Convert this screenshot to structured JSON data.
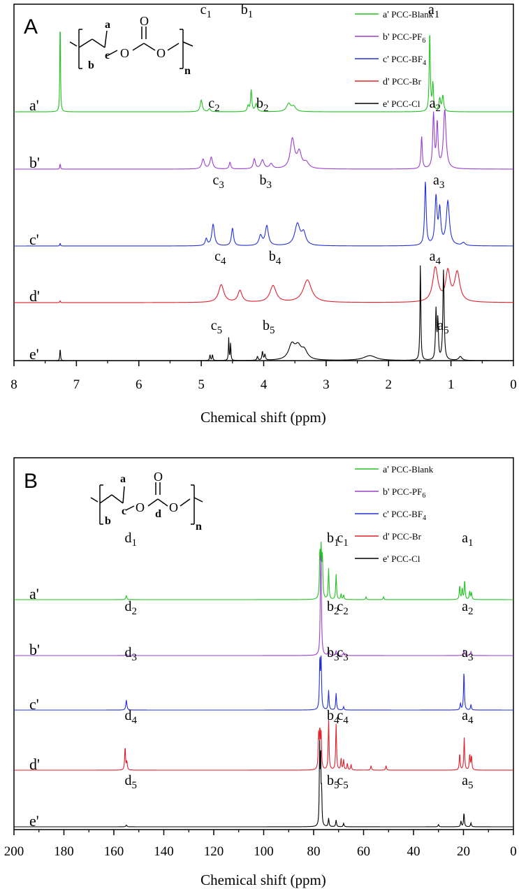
{
  "chart_data": [
    {
      "type": "line",
      "panel": "A",
      "xlabel": "Chemical shift (ppm)",
      "xlim": [
        8,
        0
      ],
      "x_reversed": true,
      "xticks": [
        8,
        7,
        6,
        5,
        4,
        3,
        2,
        1,
        0
      ],
      "grid": false,
      "legend_position": "top-right",
      "structure_labels": [
        "a",
        "c",
        "b",
        "O",
        "O",
        "O",
        "n"
      ],
      "series": [
        {
          "name": "PCC-Blank",
          "row_label": "a'",
          "legend_label": "a'",
          "color": "#22c322",
          "baseline": 0,
          "peak_height_scale": 140,
          "peaks": [
            [
              7.26,
              1.0,
              0.006
            ],
            [
              5.0,
              0.12,
              0.02
            ],
            [
              4.87,
              0.03,
              0.02
            ],
            [
              4.2,
              0.22,
              0.012
            ],
            [
              4.12,
              0.08,
              0.02
            ],
            [
              4.25,
              0.06,
              0.015
            ],
            [
              3.6,
              0.08,
              0.04
            ],
            [
              3.52,
              0.05,
              0.04
            ],
            [
              1.34,
              0.82,
              0.01
            ],
            [
              1.29,
              0.28,
              0.012
            ],
            [
              1.18,
              0.13,
              0.015
            ],
            [
              1.13,
              0.16,
              0.015
            ]
          ],
          "peak_labels": [
            {
              "letter": "c",
              "sub": "1",
              "x": 4.95
            },
            {
              "letter": "b",
              "sub": "1",
              "x": 4.3
            },
            {
              "letter": "a",
              "sub": "1",
              "x": 1.3
            }
          ]
        },
        {
          "name": "PCC-PF",
          "name_sub": "6",
          "row_label": "b'",
          "legend_label": "b'",
          "color": "#9a3fd0",
          "baseline": 0,
          "peak_height_scale": 140,
          "peaks": [
            [
              7.26,
              0.06,
              0.006
            ],
            [
              4.97,
              0.1,
              0.025
            ],
            [
              4.84,
              0.12,
              0.025
            ],
            [
              4.54,
              0.07,
              0.015
            ],
            [
              4.15,
              0.1,
              0.02
            ],
            [
              4.02,
              0.09,
              0.03
            ],
            [
              3.88,
              0.05,
              0.03
            ],
            [
              3.54,
              0.3,
              0.04
            ],
            [
              3.43,
              0.16,
              0.04
            ],
            [
              3.32,
              0.06,
              0.05
            ],
            [
              1.47,
              0.33,
              0.012
            ],
            [
              1.28,
              0.55,
              0.015
            ],
            [
              1.22,
              0.45,
              0.015
            ],
            [
              1.1,
              0.6,
              0.025
            ]
          ],
          "peak_labels": [
            {
              "letter": "c",
              "sub": "2",
              "x": 4.82
            },
            {
              "letter": "b",
              "sub": "2",
              "x": 4.05
            },
            {
              "letter": "a",
              "sub": "2",
              "x": 1.28
            }
          ]
        },
        {
          "name": "PCC-BF",
          "name_sub": "4",
          "row_label": "c'",
          "legend_label": "c'",
          "color": "#2430d6",
          "baseline": 0,
          "peak_height_scale": 140,
          "peaks": [
            [
              7.26,
              0.03,
              0.006
            ],
            [
              4.92,
              0.07,
              0.02
            ],
            [
              4.81,
              0.22,
              0.025
            ],
            [
              4.5,
              0.18,
              0.02
            ],
            [
              4.05,
              0.1,
              0.03
            ],
            [
              3.95,
              0.2,
              0.03
            ],
            [
              3.46,
              0.22,
              0.05
            ],
            [
              3.36,
              0.12,
              0.04
            ],
            [
              1.41,
              0.65,
              0.015
            ],
            [
              1.24,
              0.48,
              0.02
            ],
            [
              1.18,
              0.35,
              0.02
            ],
            [
              1.05,
              0.45,
              0.03
            ],
            [
              0.8,
              0.03,
              0.03
            ]
          ],
          "peak_labels": [
            {
              "letter": "c",
              "sub": "3",
              "x": 4.75
            },
            {
              "letter": "b",
              "sub": "3",
              "x": 4.0
            },
            {
              "letter": "a",
              "sub": "3",
              "x": 1.22
            }
          ]
        },
        {
          "name": "PCC-Br",
          "row_label": "d'",
          "legend_label": "d'",
          "color": "#e0202a",
          "baseline": 0,
          "peak_height_scale": 140,
          "peaks": [
            [
              7.26,
              0.02,
              0.006
            ],
            [
              4.68,
              0.18,
              0.05
            ],
            [
              4.38,
              0.12,
              0.04
            ],
            [
              3.85,
              0.17,
              0.06
            ],
            [
              3.3,
              0.23,
              0.08
            ],
            [
              1.25,
              0.35,
              0.05
            ],
            [
              1.05,
              0.3,
              0.04
            ],
            [
              0.9,
              0.3,
              0.05
            ]
          ],
          "peak_labels": [
            {
              "letter": "c",
              "sub": "4",
              "x": 4.72
            },
            {
              "letter": "b",
              "sub": "4",
              "x": 3.85
            },
            {
              "letter": "a",
              "sub": "4",
              "x": 1.28
            }
          ]
        },
        {
          "name": "PCC-Cl",
          "row_label": "e'",
          "legend_label": "e'",
          "color": "#000000",
          "baseline": 0,
          "peak_height_scale": 140,
          "peaks": [
            [
              7.26,
              0.13,
              0.006
            ],
            [
              4.86,
              0.06,
              0.008
            ],
            [
              4.82,
              0.06,
              0.008
            ],
            [
              4.56,
              0.23,
              0.006
            ],
            [
              4.53,
              0.18,
              0.006
            ],
            [
              4.1,
              0.04,
              0.01
            ],
            [
              4.02,
              0.09,
              0.01
            ],
            [
              3.98,
              0.06,
              0.01
            ],
            [
              3.55,
              0.15,
              0.06
            ],
            [
              3.45,
              0.12,
              0.06
            ],
            [
              3.35,
              0.09,
              0.06
            ],
            [
              2.3,
              0.05,
              0.12
            ],
            [
              1.49,
              1.0,
              0.008
            ],
            [
              1.24,
              0.5,
              0.01
            ],
            [
              1.21,
              0.4,
              0.01
            ],
            [
              1.12,
              0.92,
              0.012
            ],
            [
              0.85,
              0.04,
              0.03
            ]
          ],
          "peak_labels": [
            {
              "letter": "c",
              "sub": "5",
              "x": 4.78
            },
            {
              "letter": "b",
              "sub": "5",
              "x": 3.95
            },
            {
              "letter": "a",
              "sub": "5",
              "x": 1.15
            }
          ]
        }
      ]
    },
    {
      "type": "line",
      "panel": "B",
      "xlabel": "Chemical shift (ppm)",
      "xlim": [
        200,
        0
      ],
      "x_reversed": true,
      "xticks": [
        200,
        180,
        160,
        140,
        120,
        100,
        80,
        60,
        40,
        20,
        0
      ],
      "grid": false,
      "legend_position": "top-right",
      "structure_labels": [
        "a",
        "c",
        "d",
        "b",
        "O",
        "O",
        "O",
        "n"
      ],
      "series": [
        {
          "name": "PCC-Blank",
          "row_label": "a'",
          "legend_label": "a'",
          "color": "#22c322",
          "baseline": 0,
          "peak_height_scale": 80,
          "peaks": [
            [
              155.0,
              0.07,
              0.25
            ],
            [
              77.5,
              0.82,
              0.2
            ],
            [
              77.0,
              0.82,
              0.2
            ],
            [
              76.5,
              0.75,
              0.2
            ],
            [
              74.0,
              0.55,
              0.2
            ],
            [
              71.0,
              0.45,
              0.2
            ],
            [
              69.0,
              0.1,
              0.2
            ],
            [
              68.0,
              0.08,
              0.2
            ],
            [
              59.0,
              0.05,
              0.2
            ],
            [
              52.0,
              0.05,
              0.2
            ],
            [
              21.5,
              0.25,
              0.2
            ],
            [
              20.5,
              0.2,
              0.2
            ],
            [
              19.5,
              0.35,
              0.2
            ],
            [
              17.5,
              0.15,
              0.2
            ],
            [
              16.8,
              0.12,
              0.2
            ]
          ],
          "peak_labels": [
            {
              "letter": "d",
              "sub": "1",
              "x": 154
            },
            {
              "letter": "b",
              "sub": "1",
              "x": 73
            },
            {
              "letter": "c",
              "sub": "1",
              "x": 69
            },
            {
              "letter": "a",
              "sub": "1",
              "x": 19
            }
          ]
        },
        {
          "name": "PCC-PF",
          "name_sub": "6",
          "row_label": "b'",
          "legend_label": "b'",
          "color": "#9a3fd0",
          "baseline": 0,
          "peak_height_scale": 80,
          "peaks": [
            [
              155.0,
              0.03,
              0.25
            ],
            [
              77.2,
              1.15,
              0.2
            ],
            [
              77.0,
              1.1,
              0.2
            ],
            [
              74.0,
              0.09,
              0.25
            ],
            [
              71.0,
              0.08,
              0.25
            ],
            [
              68.0,
              0.05,
              0.25
            ],
            [
              19.8,
              0.1,
              0.25
            ],
            [
              17.0,
              0.07,
              0.25
            ]
          ],
          "peak_labels": [
            {
              "letter": "d",
              "sub": "2",
              "x": 154
            },
            {
              "letter": "b",
              "sub": "2",
              "x": 73
            },
            {
              "letter": "c",
              "sub": "2",
              "x": 69
            },
            {
              "letter": "a",
              "sub": "2",
              "x": 19
            }
          ]
        },
        {
          "name": "PCC-BF",
          "name_sub": "4",
          "row_label": "c'",
          "legend_label": "c'",
          "color": "#2430d6",
          "baseline": 0,
          "peak_height_scale": 80,
          "peaks": [
            [
              155.0,
              0.18,
              0.25
            ],
            [
              77.5,
              0.9,
              0.2
            ],
            [
              77.0,
              0.85,
              0.2
            ],
            [
              74.0,
              0.35,
              0.2
            ],
            [
              71.0,
              0.3,
              0.2
            ],
            [
              68.0,
              0.06,
              0.2
            ],
            [
              21.2,
              0.12,
              0.2
            ],
            [
              19.8,
              0.7,
              0.2
            ],
            [
              17.0,
              0.1,
              0.2
            ]
          ],
          "peak_labels": [
            {
              "letter": "d",
              "sub": "3",
              "x": 154
            },
            {
              "letter": "b",
              "sub": "3",
              "x": 73
            },
            {
              "letter": "c",
              "sub": "3",
              "x": 69
            },
            {
              "letter": "a",
              "sub": "3",
              "x": 19
            }
          ]
        },
        {
          "name": "PCC-Br",
          "row_label": "d'",
          "legend_label": "d'",
          "color": "#e0202a",
          "baseline": 0,
          "peak_height_scale": 80,
          "peaks": [
            [
              155.5,
              0.42,
              0.2
            ],
            [
              154.8,
              0.15,
              0.2
            ],
            [
              78.0,
              0.6,
              0.2
            ],
            [
              77.5,
              0.65,
              0.2
            ],
            [
              77.0,
              0.6,
              0.2
            ],
            [
              74.0,
              0.9,
              0.2
            ],
            [
              71.0,
              0.82,
              0.2
            ],
            [
              69.0,
              0.2,
              0.2
            ],
            [
              68.0,
              0.18,
              0.2
            ],
            [
              66.5,
              0.12,
              0.2
            ],
            [
              65.0,
              0.1,
              0.2
            ],
            [
              57.0,
              0.08,
              0.2
            ],
            [
              51.0,
              0.08,
              0.2
            ],
            [
              21.5,
              0.3,
              0.2
            ],
            [
              19.7,
              0.58,
              0.2
            ],
            [
              17.5,
              0.28,
              0.2
            ],
            [
              16.8,
              0.25,
              0.2
            ]
          ],
          "peak_labels": [
            {
              "letter": "d",
              "sub": "4",
              "x": 154
            },
            {
              "letter": "b",
              "sub": "4",
              "x": 73
            },
            {
              "letter": "c",
              "sub": "4",
              "x": 69
            },
            {
              "letter": "a",
              "sub": "4",
              "x": 19
            }
          ]
        },
        {
          "name": "PCC-Cl",
          "row_label": "e'",
          "legend_label": "e'",
          "color": "#000000",
          "baseline": 0,
          "peak_height_scale": 80,
          "peaks": [
            [
              155.0,
              0.03,
              0.25
            ],
            [
              77.6,
              1.4,
              0.15
            ],
            [
              77.2,
              1.3,
              0.15
            ],
            [
              76.8,
              0.6,
              0.15
            ],
            [
              74.0,
              0.15,
              0.2
            ],
            [
              71.0,
              0.12,
              0.2
            ],
            [
              68.0,
              0.06,
              0.2
            ],
            [
              30.0,
              0.04,
              0.2
            ],
            [
              21.0,
              0.1,
              0.2
            ],
            [
              19.8,
              0.25,
              0.2
            ],
            [
              17.0,
              0.07,
              0.2
            ]
          ],
          "peak_labels": [
            {
              "letter": "d",
              "sub": "5",
              "x": 154
            },
            {
              "letter": "b",
              "sub": "5",
              "x": 73
            },
            {
              "letter": "c",
              "sub": "5",
              "x": 69
            },
            {
              "letter": "a",
              "sub": "5",
              "x": 19
            }
          ]
        }
      ]
    }
  ]
}
